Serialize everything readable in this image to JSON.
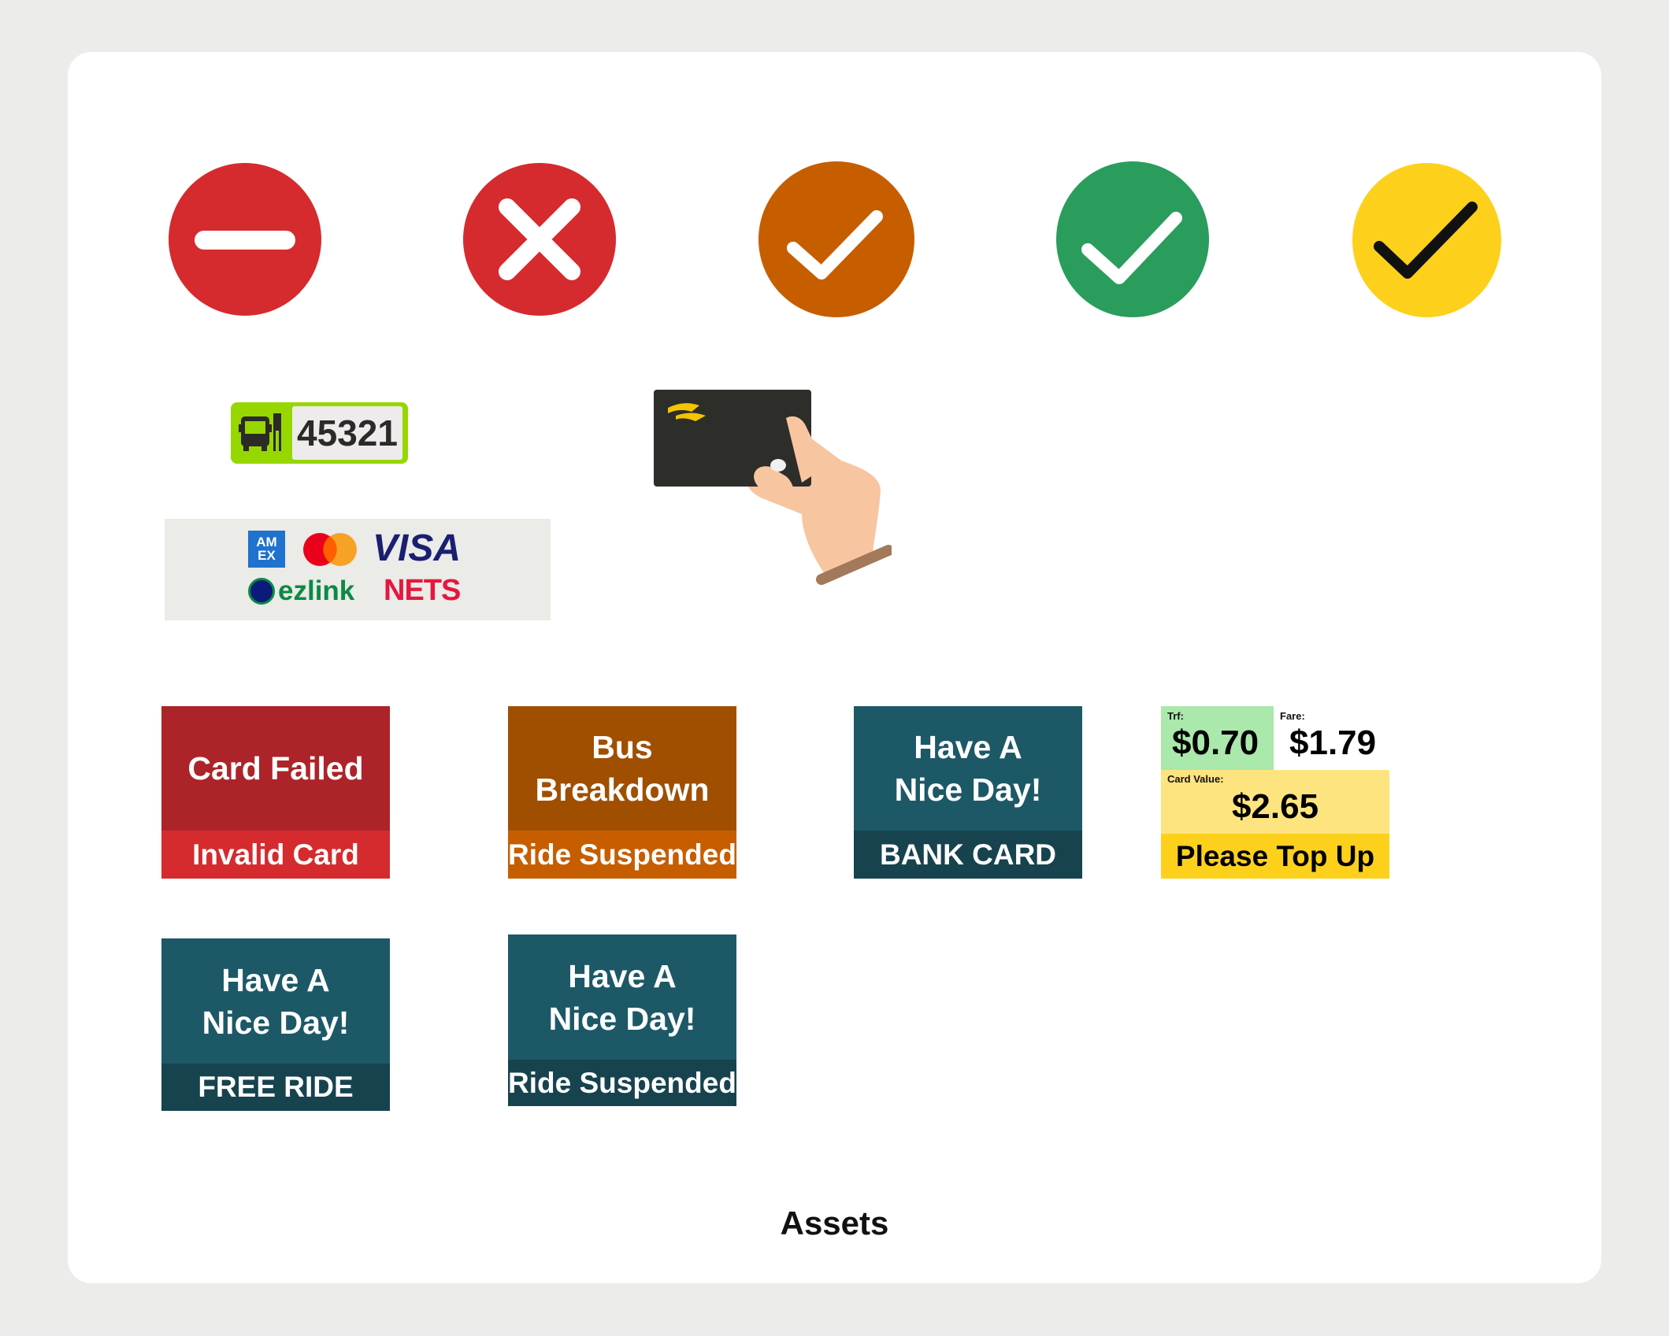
{
  "caption": "Assets",
  "status_icons": [
    {
      "name": "no-entry-icon",
      "color": "#d52b2e"
    },
    {
      "name": "cross-icon",
      "color": "#d52b2e"
    },
    {
      "name": "check-orange-icon",
      "color": "#c65e00"
    },
    {
      "name": "check-green-icon",
      "color": "#2a9d5c"
    },
    {
      "name": "check-yellow-icon",
      "color": "#fdd11b"
    }
  ],
  "bus_stop": {
    "code": "45321",
    "color": "#97d700"
  },
  "payment_logos": {
    "amex": "AM EX",
    "visa": "VISA",
    "ezlink": "ezlink",
    "nets": "NETS"
  },
  "tiles": [
    {
      "title": "Card Failed",
      "subtitle": "Invalid Card",
      "top_color": "#ac2429",
      "bottom_color": "#d52b2e"
    },
    {
      "title_line1": "Bus",
      "title_line2": "Breakdown",
      "subtitle": "Ride Suspended",
      "top_color": "#a04f00",
      "bottom_color": "#c65e00"
    },
    {
      "title_line1": "Have A",
      "title_line2": "Nice Day!",
      "subtitle": "BANK CARD",
      "top_color": "#1d5867",
      "bottom_color": "#17434f"
    },
    {
      "title_line1": "Have A",
      "title_line2": "Nice Day!",
      "subtitle": "FREE RIDE",
      "top_color": "#1d5867",
      "bottom_color": "#17434f"
    },
    {
      "title_line1": "Have A",
      "title_line2": "Nice Day!",
      "subtitle": "Ride Suspended",
      "top_color": "#1d5867",
      "bottom_color": "#17434f"
    }
  ],
  "fare_panel": {
    "transfer_label": "Trf:",
    "transfer_value": "$0.70",
    "fare_label": "Fare:",
    "fare_value": "$1.79",
    "card_value_label": "Card Value:",
    "card_value": "$2.65",
    "message": "Please Top Up"
  }
}
